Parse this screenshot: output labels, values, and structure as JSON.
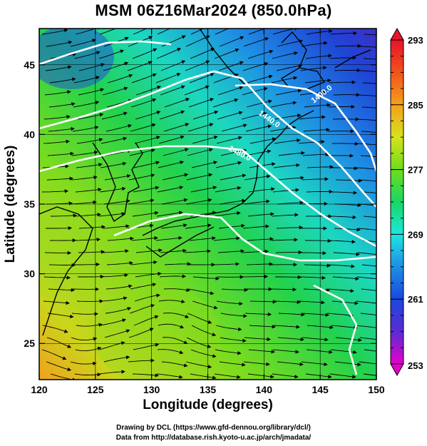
{
  "title": "MSM 06Z16Mar2024 (850.0hPa)",
  "axes": {
    "xlabel": "Longitude (degrees)",
    "ylabel": "Latitude  (degrees)",
    "x_ticks": [
      120,
      125,
      130,
      135,
      140,
      145,
      150
    ],
    "y_ticks": [
      25,
      30,
      35,
      40,
      45
    ],
    "xlim": [
      120,
      150
    ],
    "ylim": [
      22.4,
      47.6
    ]
  },
  "colorbar": {
    "labels": [
      293,
      285,
      277,
      269,
      261,
      253
    ],
    "range": [
      253,
      293
    ],
    "stops": [
      "#e600cc",
      "#5a2bd2",
      "#1a48e0",
      "#1d8fe6",
      "#1ee6df",
      "#18d864",
      "#6fdc1c",
      "#d6e21c",
      "#f5a01b",
      "#f2521b",
      "#e8122b"
    ]
  },
  "contours": {
    "color": "#ffffff",
    "labels": [
      "1400.0",
      "1440.0",
      "1480.0"
    ]
  },
  "credits": {
    "line1": "Drawing by DCL (https://www.gfd-dennou.org/library/dcl/)",
    "line2": "Data from http://database.rish.kyoto-u.ac.jp/arch/jmadata/"
  }
}
